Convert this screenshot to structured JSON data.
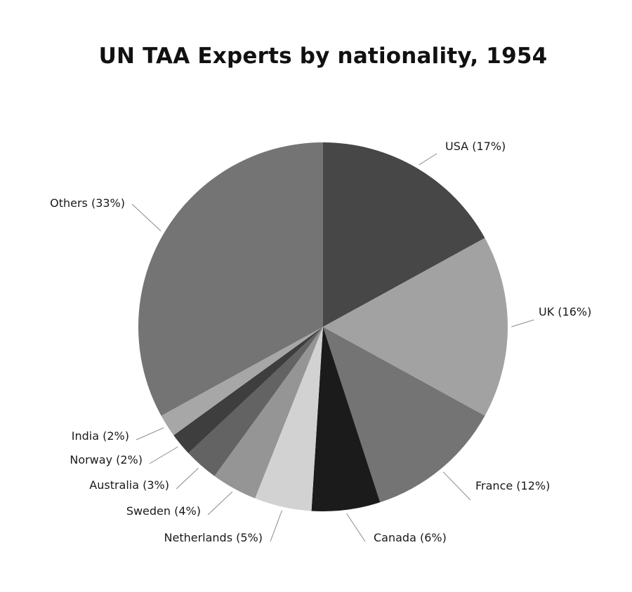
{
  "chart_data": {
    "type": "pie",
    "title": "UN TAA Experts by nationality, 1954",
    "slices": [
      {
        "label": "USA (17%)",
        "value": 17,
        "color": "#474747"
      },
      {
        "label": "UK (16%)",
        "value": 16,
        "color": "#a2a2a2"
      },
      {
        "label": "France (12%)",
        "value": 12,
        "color": "#747474"
      },
      {
        "label": "Canada (6%)",
        "value": 6,
        "color": "#1b1b1b"
      },
      {
        "label": "Netherlands (5%)",
        "value": 5,
        "color": "#d2d2d2"
      },
      {
        "label": "Sweden (4%)",
        "value": 4,
        "color": "#959595"
      },
      {
        "label": "Australia (3%)",
        "value": 3,
        "color": "#636363"
      },
      {
        "label": "Norway (2%)",
        "value": 2,
        "color": "#3e3e3e"
      },
      {
        "label": "India (2%)",
        "value": 2,
        "color": "#a7a7a7"
      },
      {
        "label": "Others (33%)",
        "value": 33,
        "color": "#747474"
      }
    ]
  }
}
